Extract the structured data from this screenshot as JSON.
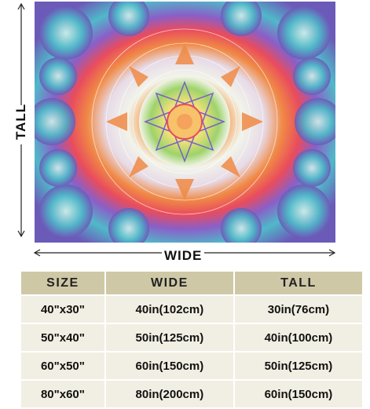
{
  "dimension_labels": {
    "tall": "TALL",
    "wide": "WIDE"
  },
  "table": {
    "headers": [
      "SIZE",
      "WIDE",
      "TALL"
    ],
    "rows": [
      [
        "40\"x30\"",
        "40in(102cm)",
        "30in(76cm)"
      ],
      [
        "50\"x40\"",
        "50in(125cm)",
        "40in(100cm)"
      ],
      [
        "60\"x50\"",
        "60in(150cm)",
        "50in(125cm)"
      ],
      [
        "80\"x60\"",
        "80in(200cm)",
        "60in(150cm)"
      ]
    ]
  },
  "colors": {
    "header_bg": "#cfc8a6",
    "row_bg": "#f1efe3",
    "mandala_palette": [
      "#7a5fc8",
      "#4fb9c9",
      "#f08a45",
      "#e94c5d",
      "#f6e27a",
      "#9ed36a"
    ]
  }
}
